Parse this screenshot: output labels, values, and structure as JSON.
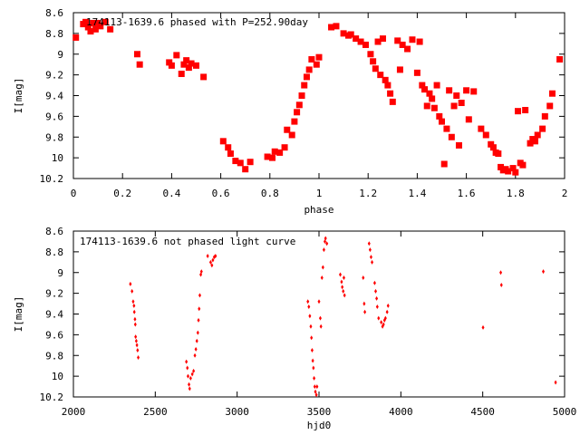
{
  "chart_data": [
    {
      "type": "scatter",
      "title": "174113-1639.6 phased with P=252.90day",
      "xlabel": "phase",
      "ylabel": "I[mag]",
      "xlim": [
        0,
        2
      ],
      "ylim": [
        10.2,
        8.6
      ],
      "y_inverted": true,
      "x_ticks": [
        "0",
        "0.2",
        "0.4",
        "0.6",
        "0.8",
        "1",
        "1.2",
        "1.4",
        "1.6",
        "1.8",
        "2"
      ],
      "y_ticks": [
        "8.6",
        "8.8",
        "9",
        "9.2",
        "9.4",
        "9.6",
        "9.8",
        "10",
        "10.2"
      ],
      "grid": false,
      "legend": "none",
      "marker": "filled-square",
      "color": "#ff0000",
      "series": [
        {
          "points": [
            [
              0.01,
              8.84
            ],
            [
              0.04,
              8.71
            ],
            [
              0.05,
              8.69
            ],
            [
              0.06,
              8.74
            ],
            [
              0.07,
              8.78
            ],
            [
              0.08,
              8.7
            ],
            [
              0.09,
              8.76
            ],
            [
              0.1,
              8.7
            ],
            [
              0.11,
              8.73
            ],
            [
              0.13,
              8.69
            ],
            [
              0.15,
              8.76
            ],
            [
              0.26,
              9.0
            ],
            [
              0.27,
              9.1
            ],
            [
              0.39,
              9.08
            ],
            [
              0.4,
              9.11
            ],
            [
              0.42,
              9.01
            ],
            [
              0.44,
              9.19
            ],
            [
              0.45,
              9.1
            ],
            [
              0.46,
              9.06
            ],
            [
              0.47,
              9.13
            ],
            [
              0.48,
              9.09
            ],
            [
              0.5,
              9.11
            ],
            [
              0.53,
              9.22
            ],
            [
              0.61,
              9.84
            ],
            [
              0.63,
              9.9
            ],
            [
              0.64,
              9.96
            ],
            [
              0.66,
              10.03
            ],
            [
              0.68,
              10.05
            ],
            [
              0.7,
              10.11
            ],
            [
              0.72,
              10.04
            ],
            [
              0.79,
              9.99
            ],
            [
              0.81,
              10.0
            ],
            [
              0.82,
              9.94
            ],
            [
              0.84,
              9.95
            ],
            [
              0.86,
              9.9
            ],
            [
              0.87,
              9.73
            ],
            [
              0.89,
              9.78
            ],
            [
              0.9,
              9.65
            ],
            [
              0.91,
              9.56
            ],
            [
              0.92,
              9.49
            ],
            [
              0.93,
              9.4
            ],
            [
              0.94,
              9.3
            ],
            [
              0.95,
              9.22
            ],
            [
              0.96,
              9.15
            ],
            [
              0.97,
              9.05
            ],
            [
              0.99,
              9.1
            ],
            [
              1.0,
              9.03
            ],
            [
              1.05,
              8.74
            ],
            [
              1.07,
              8.73
            ],
            [
              1.1,
              8.8
            ],
            [
              1.12,
              8.82
            ],
            [
              1.13,
              8.81
            ],
            [
              1.15,
              8.85
            ],
            [
              1.17,
              8.88
            ],
            [
              1.19,
              8.91
            ],
            [
              1.21,
              9.0
            ],
            [
              1.22,
              9.07
            ],
            [
              1.23,
              9.14
            ],
            [
              1.24,
              8.88
            ],
            [
              1.25,
              9.2
            ],
            [
              1.26,
              8.85
            ],
            [
              1.27,
              9.25
            ],
            [
              1.28,
              9.3
            ],
            [
              1.29,
              9.38
            ],
            [
              1.3,
              9.46
            ],
            [
              1.32,
              8.87
            ],
            [
              1.33,
              9.15
            ],
            [
              1.34,
              8.91
            ],
            [
              1.36,
              8.95
            ],
            [
              1.38,
              8.86
            ],
            [
              1.4,
              9.18
            ],
            [
              1.41,
              8.88
            ],
            [
              1.42,
              9.3
            ],
            [
              1.43,
              9.34
            ],
            [
              1.44,
              9.5
            ],
            [
              1.45,
              9.38
            ],
            [
              1.46,
              9.43
            ],
            [
              1.47,
              9.52
            ],
            [
              1.48,
              9.3
            ],
            [
              1.49,
              9.6
            ],
            [
              1.5,
              9.65
            ],
            [
              1.51,
              10.06
            ],
            [
              1.52,
              9.72
            ],
            [
              1.53,
              9.35
            ],
            [
              1.54,
              9.8
            ],
            [
              1.55,
              9.5
            ],
            [
              1.56,
              9.4
            ],
            [
              1.57,
              9.88
            ],
            [
              1.58,
              9.47
            ],
            [
              1.6,
              9.35
            ],
            [
              1.61,
              9.63
            ],
            [
              1.63,
              9.36
            ],
            [
              1.66,
              9.72
            ],
            [
              1.68,
              9.78
            ],
            [
              1.7,
              9.87
            ],
            [
              1.71,
              9.9
            ],
            [
              1.72,
              9.95
            ],
            [
              1.73,
              9.96
            ],
            [
              1.74,
              10.09
            ],
            [
              1.75,
              10.12
            ],
            [
              1.76,
              10.11
            ],
            [
              1.77,
              10.13
            ],
            [
              1.79,
              10.1
            ],
            [
              1.8,
              10.14
            ],
            [
              1.81,
              9.55
            ],
            [
              1.82,
              10.05
            ],
            [
              1.83,
              10.07
            ],
            [
              1.84,
              9.54
            ],
            [
              1.86,
              9.86
            ],
            [
              1.87,
              9.82
            ],
            [
              1.88,
              9.84
            ],
            [
              1.89,
              9.78
            ],
            [
              1.91,
              9.72
            ],
            [
              1.92,
              9.6
            ],
            [
              1.94,
              9.5
            ],
            [
              1.95,
              9.38
            ],
            [
              1.98,
              9.05
            ]
          ]
        }
      ]
    },
    {
      "type": "scatter",
      "title": "174113-1639.6 not phased light curve",
      "xlabel": "hjd0",
      "ylabel": "I[mag]",
      "xlim": [
        2000,
        5000
      ],
      "ylim": [
        10.2,
        8.6
      ],
      "y_inverted": true,
      "x_ticks": [
        "2000",
        "2500",
        "3000",
        "3500",
        "4000",
        "4500",
        "5000"
      ],
      "y_ticks": [
        "8.6",
        "8.8",
        "9",
        "9.2",
        "9.4",
        "9.6",
        "9.8",
        "10",
        "10.2"
      ],
      "grid": false,
      "legend": "none",
      "marker": "small-diamond",
      "color": "#ff0000",
      "series": [
        {
          "points": [
            [
              2348,
              9.11
            ],
            [
              2358,
              9.18
            ],
            [
              2365,
              9.28
            ],
            [
              2370,
              9.32
            ],
            [
              2372,
              9.38
            ],
            [
              2376,
              9.45
            ],
            [
              2378,
              9.5
            ],
            [
              2380,
              9.62
            ],
            [
              2384,
              9.66
            ],
            [
              2388,
              9.7
            ],
            [
              2392,
              9.75
            ],
            [
              2396,
              9.82
            ],
            [
              2690,
              9.86
            ],
            [
              2696,
              9.92
            ],
            [
              2700,
              10.0
            ],
            [
              2706,
              10.08
            ],
            [
              2710,
              10.12
            ],
            [
              2716,
              10.02
            ],
            [
              2726,
              9.98
            ],
            [
              2734,
              9.95
            ],
            [
              2742,
              9.8
            ],
            [
              2748,
              9.74
            ],
            [
              2754,
              9.66
            ],
            [
              2760,
              9.58
            ],
            [
              2764,
              9.46
            ],
            [
              2768,
              9.35
            ],
            [
              2772,
              9.22
            ],
            [
              2778,
              9.02
            ],
            [
              2782,
              8.99
            ],
            [
              2820,
              8.84
            ],
            [
              2838,
              8.9
            ],
            [
              2846,
              8.93
            ],
            [
              2852,
              8.88
            ],
            [
              2860,
              8.85
            ],
            [
              2868,
              8.84
            ],
            [
              3432,
              9.28
            ],
            [
              3438,
              9.33
            ],
            [
              3444,
              9.42
            ],
            [
              3450,
              9.52
            ],
            [
              3454,
              9.63
            ],
            [
              3458,
              9.75
            ],
            [
              3462,
              9.85
            ],
            [
              3466,
              9.92
            ],
            [
              3470,
              10.02
            ],
            [
              3474,
              10.1
            ],
            [
              3478,
              10.15
            ],
            [
              3484,
              10.18
            ],
            [
              3488,
              10.1
            ],
            [
              3500,
              9.28
            ],
            [
              3508,
              9.44
            ],
            [
              3512,
              9.52
            ],
            [
              3518,
              9.05
            ],
            [
              3524,
              8.95
            ],
            [
              3530,
              8.78
            ],
            [
              3536,
              8.7
            ],
            [
              3540,
              8.67
            ],
            [
              3548,
              8.72
            ],
            [
              3630,
              9.02
            ],
            [
              3638,
              9.09
            ],
            [
              3642,
              9.14
            ],
            [
              3648,
              9.18
            ],
            [
              3652,
              9.05
            ],
            [
              3656,
              9.22
            ],
            [
              3770,
              9.05
            ],
            [
              3776,
              9.3
            ],
            [
              3780,
              9.38
            ],
            [
              3806,
              8.72
            ],
            [
              3812,
              8.78
            ],
            [
              3818,
              8.85
            ],
            [
              3824,
              8.9
            ],
            [
              3840,
              9.1
            ],
            [
              3846,
              9.18
            ],
            [
              3852,
              9.25
            ],
            [
              3856,
              9.33
            ],
            [
              3864,
              9.44
            ],
            [
              3880,
              9.48
            ],
            [
              3888,
              9.52
            ],
            [
              3894,
              9.5
            ],
            [
              3900,
              9.46
            ],
            [
              3906,
              9.44
            ],
            [
              3916,
              9.38
            ],
            [
              3922,
              9.32
            ],
            [
              4502,
              9.53
            ],
            [
              4610,
              9.0
            ],
            [
              4614,
              9.12
            ],
            [
              4870,
              8.99
            ],
            [
              4945,
              10.06
            ]
          ]
        }
      ]
    }
  ]
}
